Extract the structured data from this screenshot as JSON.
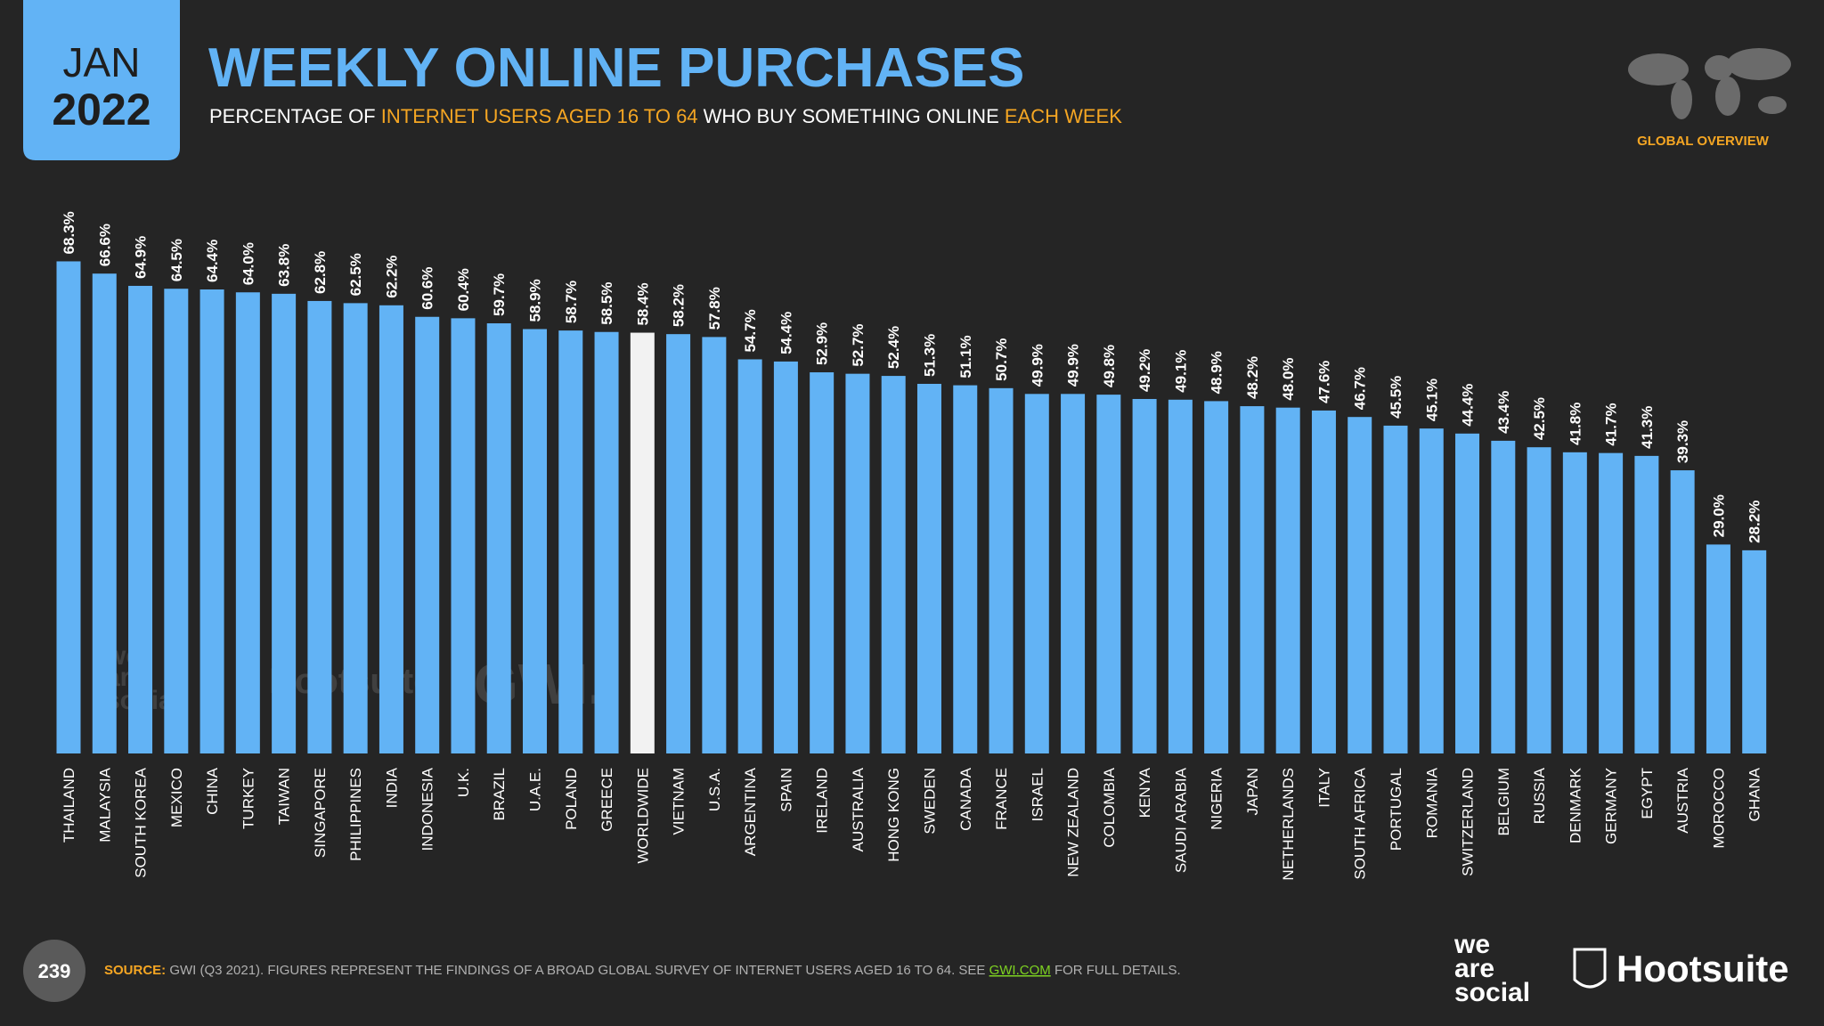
{
  "header": {
    "month": "JAN",
    "year": "2022",
    "region": "GLOBAL OVERVIEW"
  },
  "chart_data": {
    "type": "bar",
    "title": "WEEKLY ONLINE PURCHASES",
    "subtitle": [
      "PERCENTAGE OF",
      "INTERNET USERS AGED 16 TO 64",
      "WHO BUY SOMETHING ONLINE",
      "EACH WEEK"
    ],
    "categories": [
      "THAILAND",
      "MALAYSIA",
      "SOUTH KOREA",
      "MEXICO",
      "CHINA",
      "TURKEY",
      "TAIWAN",
      "SINGAPORE",
      "PHILIPPINES",
      "INDIA",
      "INDONESIA",
      "U.K.",
      "BRAZIL",
      "U.A.E.",
      "POLAND",
      "GREECE",
      "WORLDWIDE",
      "VIETNAM",
      "U.S.A.",
      "ARGENTINA",
      "SPAIN",
      "IRELAND",
      "AUSTRALIA",
      "HONG KONG",
      "SWEDEN",
      "CANADA",
      "FRANCE",
      "ISRAEL",
      "NEW ZEALAND",
      "COLOMBIA",
      "KENYA",
      "SAUDI ARABIA",
      "NIGERIA",
      "JAPAN",
      "NETHERLANDS",
      "ITALY",
      "SOUTH AFRICA",
      "PORTUGAL",
      "ROMANIA",
      "SWITZERLAND",
      "BELGIUM",
      "RUSSIA",
      "DENMARK",
      "GERMANY",
      "EGYPT",
      "AUSTRIA",
      "MOROCCO",
      "GHANA"
    ],
    "values": [
      68.3,
      66.6,
      64.9,
      64.5,
      64.4,
      64.0,
      63.8,
      62.8,
      62.5,
      62.2,
      60.6,
      60.4,
      59.7,
      58.9,
      58.7,
      58.5,
      58.4,
      58.2,
      57.8,
      54.7,
      54.4,
      52.9,
      52.7,
      52.4,
      51.3,
      51.1,
      50.7,
      49.9,
      49.9,
      49.8,
      49.2,
      49.1,
      48.9,
      48.2,
      48.0,
      47.6,
      46.7,
      45.5,
      45.1,
      44.4,
      43.4,
      42.5,
      41.8,
      41.7,
      41.3,
      39.3,
      29.0,
      28.2
    ],
    "value_labels": [
      "68.3%",
      "66.6%",
      "64.9%",
      "64.5%",
      "64.4%",
      "64.0%",
      "63.8%",
      "62.8%",
      "62.5%",
      "62.2%",
      "60.6%",
      "60.4%",
      "59.7%",
      "58.9%",
      "58.7%",
      "58.5%",
      "58.4%",
      "58.2%",
      "57.8%",
      "54.7%",
      "54.4%",
      "52.9%",
      "52.7%",
      "52.4%",
      "51.3%",
      "51.1%",
      "50.7%",
      "49.9%",
      "49.9%",
      "49.8%",
      "49.2%",
      "49.1%",
      "48.9%",
      "48.2%",
      "48.0%",
      "47.6%",
      "46.7%",
      "45.5%",
      "45.1%",
      "44.4%",
      "43.4%",
      "42.5%",
      "41.8%",
      "41.7%",
      "41.3%",
      "39.3%",
      "29.0%",
      "28.2%"
    ],
    "colors": [
      "#62b3f5",
      "#62b3f5",
      "#62b3f5",
      "#62b3f5",
      "#62b3f5",
      "#62b3f5",
      "#62b3f5",
      "#62b3f5",
      "#62b3f5",
      "#62b3f5",
      "#62b3f5",
      "#62b3f5",
      "#62b3f5",
      "#62b3f5",
      "#62b3f5",
      "#62b3f5",
      "#f2f2f2",
      "#62b3f5",
      "#62b3f5",
      "#62b3f5",
      "#62b3f5",
      "#62b3f5",
      "#62b3f5",
      "#62b3f5",
      "#62b3f5",
      "#62b3f5",
      "#62b3f5",
      "#62b3f5",
      "#62b3f5",
      "#62b3f5",
      "#62b3f5",
      "#62b3f5",
      "#62b3f5",
      "#62b3f5",
      "#62b3f5",
      "#62b3f5",
      "#62b3f5",
      "#62b3f5",
      "#62b3f5",
      "#62b3f5",
      "#62b3f5",
      "#62b3f5",
      "#62b3f5",
      "#62b3f5",
      "#62b3f5",
      "#62b3f5",
      "#62b3f5",
      "#62b3f5"
    ]
  },
  "watermarks": [
    "we",
    "are",
    "social",
    "Hootsuite",
    "GWI."
  ],
  "footer": {
    "page": "239",
    "source": [
      "SOURCE:",
      "GWI (Q3 2021). FIGURES REPRESENT THE FINDINGS OF A BROAD GLOBAL SURVEY OF INTERNET USERS AGED 16 TO 64. SEE",
      "GWI.COM",
      "FOR FULL DETAILS."
    ],
    "logo_left": [
      "we",
      "are",
      "social"
    ],
    "logo_right": "Hootsuite"
  }
}
